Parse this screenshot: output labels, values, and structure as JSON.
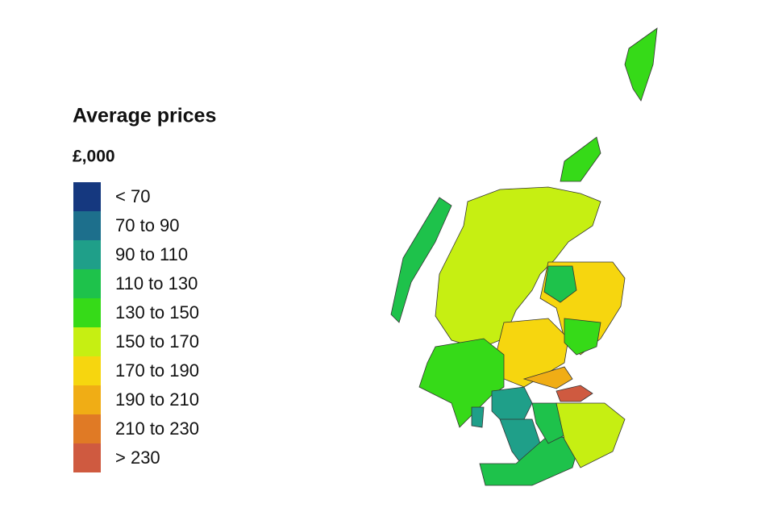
{
  "legend": {
    "title": "Average prices",
    "subtitle": "£,000",
    "items": [
      {
        "label": "< 70",
        "color": "#15387f"
      },
      {
        "label": "70 to 90",
        "color": "#1d6f8c"
      },
      {
        "label": "90 to 110",
        "color": "#1f9f89"
      },
      {
        "label": "110 to 130",
        "color": "#1ec24b"
      },
      {
        "label": "130 to 150",
        "color": "#36da18"
      },
      {
        "label": "150 to 170",
        "color": "#c6ef12"
      },
      {
        "label": "170 to 190",
        "color": "#f6d60f"
      },
      {
        "label": "190 to 210",
        "color": "#f0ad15"
      },
      {
        "label": "210 to 230",
        "color": "#e07a25"
      },
      {
        "label": "> 230",
        "color": "#cf5a40"
      }
    ]
  }
}
